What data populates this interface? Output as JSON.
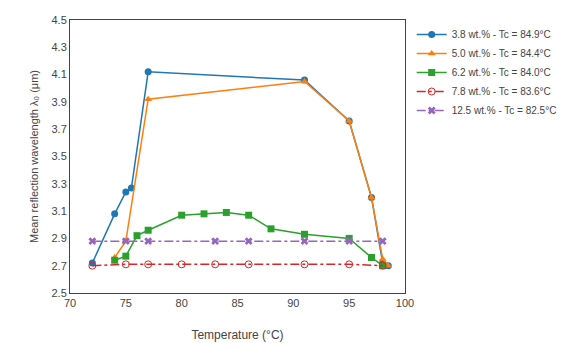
{
  "chart_data": {
    "type": "line",
    "xlabel": "Temperature (°C)",
    "ylabel": "Mean reflection wavelength λ₀ (μm)",
    "xlim": [
      70,
      100
    ],
    "ylim": [
      2.5,
      4.5
    ],
    "xticks": [
      70,
      75,
      80,
      85,
      90,
      95,
      100
    ],
    "yticks": [
      2.5,
      2.7,
      2.9,
      3.1,
      3.3,
      3.5,
      3.7,
      3.9,
      4.1,
      4.3,
      4.5
    ],
    "grid": false,
    "legend": "upper right",
    "series": [
      {
        "name": "3.8 wt.% - Tc = 84.9°C",
        "marker": "circle",
        "line_style": "solid",
        "x": [
          72,
          74,
          75,
          75.5,
          77,
          91,
          95,
          97,
          98,
          98.5
        ],
        "values": [
          2.72,
          3.08,
          3.24,
          3.27,
          4.12,
          4.06,
          3.76,
          3.2,
          2.72,
          2.7
        ]
      },
      {
        "name": "5.0 wt.% - Tc = 84.4°C",
        "marker": "triangle-up",
        "line_style": "solid",
        "x": [
          74,
          75,
          77,
          91,
          95,
          97,
          98,
          98.5
        ],
        "values": [
          2.76,
          2.88,
          3.92,
          4.05,
          3.76,
          3.2,
          2.75,
          2.7
        ]
      },
      {
        "name": "6.2 wt.% - Tc = 84.0°C",
        "marker": "square",
        "line_style": "solid",
        "x": [
          74,
          75,
          76,
          77,
          80,
          82,
          84,
          86,
          88,
          91,
          95,
          97,
          98
        ],
        "values": [
          2.74,
          2.77,
          2.92,
          2.96,
          3.07,
          3.08,
          3.09,
          3.07,
          2.97,
          2.93,
          2.9,
          2.76,
          2.7
        ]
      },
      {
        "name": "7.8 wt.% - Tc = 83.6°C",
        "marker": "circle-open",
        "line_style": "dashdot",
        "x": [
          72,
          75,
          77,
          80,
          83,
          86,
          91,
          95,
          98
        ],
        "values": [
          2.7,
          2.71,
          2.71,
          2.71,
          2.71,
          2.71,
          2.71,
          2.71,
          2.7
        ]
      },
      {
        "name": "12.5 wt.% - Tc = 82.5°C",
        "marker": "x",
        "line_style": "dashdot",
        "x": [
          72,
          75,
          77,
          83,
          86,
          91,
          95,
          98
        ],
        "values": [
          2.88,
          2.88,
          2.88,
          2.88,
          2.88,
          2.88,
          2.88,
          2.88
        ]
      }
    ]
  }
}
